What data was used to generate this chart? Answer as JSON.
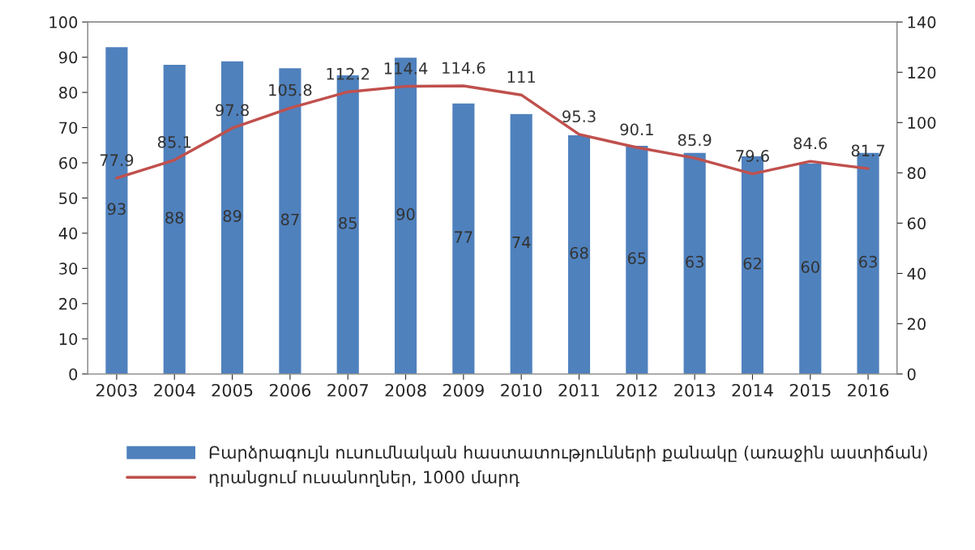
{
  "chart_data": {
    "type": "bar",
    "categories": [
      "2003",
      "2004",
      "2005",
      "2006",
      "2007",
      "2008",
      "2009",
      "2010",
      "2011",
      "2012",
      "2013",
      "2014",
      "2015",
      "2016"
    ],
    "series": [
      {
        "name": "Բարձրագույն ուսումնական հաստատությունների քանակը (առաջին աստիճան)",
        "color": "#4f81bd",
        "values": [
          93,
          88,
          89,
          87,
          85,
          90,
          77,
          74,
          68,
          65,
          63,
          62,
          60,
          63
        ]
      },
      {
        "name": "դրանցում ուսանողներ, 1000 մարդ",
        "type": "line",
        "axis": "y2",
        "color": "#c0504d",
        "values": [
          77.9,
          85.1,
          97.8,
          105.8,
          112.2,
          114.4,
          114.6,
          111,
          95.3,
          90.1,
          85.9,
          79.6,
          84.6,
          81.7
        ]
      }
    ],
    "ylim": [
      0,
      100
    ],
    "yticks": [
      0,
      10,
      20,
      30,
      40,
      50,
      60,
      70,
      80,
      90,
      100
    ],
    "y2lim": [
      0,
      140
    ],
    "y2ticks": [
      0,
      20,
      40,
      60,
      80,
      100,
      120,
      140
    ],
    "data_labels": true,
    "legend": "bottom",
    "grid": false,
    "marker": "none",
    "line_style": "solid"
  }
}
